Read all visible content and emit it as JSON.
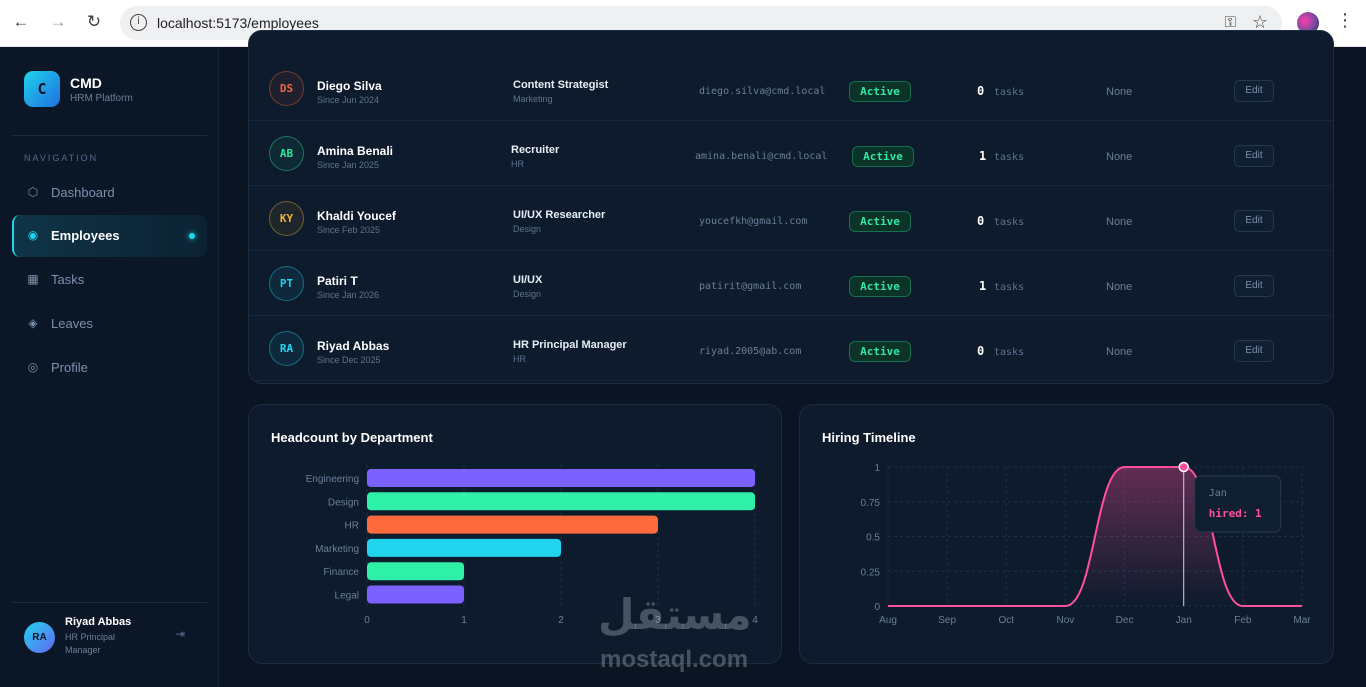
{
  "browser": {
    "url": "localhost:5173/employees",
    "back_icon": "←",
    "forward_icon": "→",
    "reload_icon": "↻",
    "menu_icon": "⋮"
  },
  "sidebar": {
    "logo_letter": "C",
    "brand": "CMD",
    "brand_sub": "HRM Platform",
    "nav_label": "NAVIGATION",
    "items": [
      {
        "label": "Dashboard",
        "icon": "⬡"
      },
      {
        "label": "Employees",
        "icon": "◉"
      },
      {
        "label": "Tasks",
        "icon": "▦"
      },
      {
        "label": "Leaves",
        "icon": "◈"
      },
      {
        "label": "Profile",
        "icon": "◎"
      }
    ],
    "user": {
      "initials": "RA",
      "name": "Riyad Abbas",
      "role": "HR Principal Manager"
    }
  },
  "employees": [
    {
      "initials": "DS",
      "name": "Diego Silva",
      "since": "Since Jun 2024",
      "role": "Content Strategist",
      "dept": "Marketing",
      "email": "diego.silva@cmd.local",
      "status": "Active",
      "tasks": "0",
      "tasks_label": "tasks",
      "manager": "None",
      "action": "Edit",
      "color": "#f2683a"
    },
    {
      "initials": "AB",
      "name": "Amina Benali",
      "since": "Since Jan 2025",
      "role": "Recruiter",
      "dept": "HR",
      "email": "amina.benali@cmd.local",
      "status": "Active",
      "tasks": "1",
      "tasks_label": "tasks",
      "manager": "None",
      "action": "Edit",
      "color": "#2ee5a0"
    },
    {
      "initials": "KY",
      "name": "Khaldi Youcef",
      "since": "Since Feb 2025",
      "role": "UI/UX Researcher",
      "dept": "Design",
      "email": "youcefkh@gmail.com",
      "status": "Active",
      "tasks": "0",
      "tasks_label": "tasks",
      "manager": "None",
      "action": "Edit",
      "color": "#f5b133"
    },
    {
      "initials": "PT",
      "name": "Patiri T",
      "since": "Since Jan 2026",
      "role": "UI/UX",
      "dept": "Design",
      "email": "patirit@gmail.com",
      "status": "Active",
      "tasks": "1",
      "tasks_label": "tasks",
      "manager": "None",
      "action": "Edit",
      "color": "#22d3ee"
    },
    {
      "initials": "RA",
      "name": "Riyad Abbas",
      "since": "Since Dec 2025",
      "role": "HR Principal Manager",
      "dept": "HR",
      "email": "riyad.2005@ab.com",
      "status": "Active",
      "tasks": "0",
      "tasks_label": "tasks",
      "manager": "None",
      "action": "Edit",
      "color": "#22d3ee"
    }
  ],
  "chart_data": [
    {
      "type": "bar",
      "orientation": "horizontal",
      "title": "Headcount by Department",
      "categories": [
        "Engineering",
        "Design",
        "HR",
        "Marketing",
        "Finance",
        "Legal"
      ],
      "values": [
        4,
        4,
        3,
        2,
        1,
        1
      ],
      "colors": [
        "#7b61ff",
        "#2ef0a7",
        "#ff6a3d",
        "#22d3ee",
        "#2ef0a7",
        "#7b61ff"
      ],
      "xticks": [
        "0",
        "1",
        "2",
        "3",
        "4"
      ],
      "xlim": [
        0,
        4
      ],
      "grid": true
    },
    {
      "type": "area",
      "title": "Hiring Timeline",
      "x": [
        "Aug",
        "Sep",
        "Oct",
        "Nov",
        "Dec",
        "Jan",
        "Feb",
        "Mar"
      ],
      "series": [
        {
          "values": [
            0,
            0,
            0,
            0,
            1,
            1,
            0,
            0
          ]
        }
      ],
      "yticks": [
        "0",
        "0.25",
        "0.5",
        "0.75",
        "1"
      ],
      "ylim": [
        0,
        1
      ],
      "color": "#ff4f9a",
      "grid": true,
      "tooltip": {
        "label": "Jan",
        "text": "hired: 1"
      }
    }
  ],
  "watermark": {
    "arabic": "مستقل",
    "latin": "mostaql.com"
  }
}
